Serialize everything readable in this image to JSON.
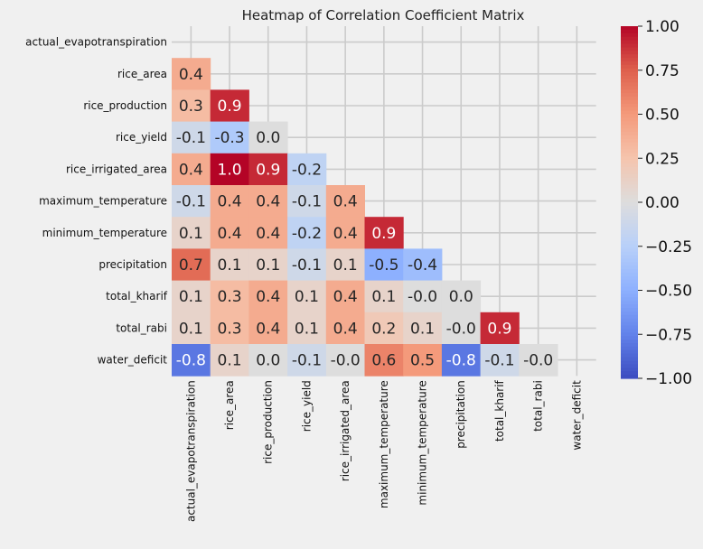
{
  "chart_data": {
    "type": "heatmap",
    "title": "Heatmap of Correlation Coefficient Matrix",
    "rows": [
      "actual_evapotranspiration",
      "rice_area",
      "rice_production",
      "rice_yield",
      "rice_irrigated_area",
      "maximum_temperature",
      "minimum_temperature",
      "precipitation",
      "total_kharif",
      "total_rabi",
      "water_deficit"
    ],
    "columns": [
      "actual_evapotranspiration",
      "rice_area",
      "rice_production",
      "rice_yield",
      "rice_irrigated_area",
      "maximum_temperature",
      "minimum_temperature",
      "precipitation",
      "total_kharif",
      "total_rabi",
      "water_deficit"
    ],
    "mask": "upper triangle including diagonal",
    "values": [
      [
        null,
        null,
        null,
        null,
        null,
        null,
        null,
        null,
        null,
        null,
        null
      ],
      [
        0.4,
        null,
        null,
        null,
        null,
        null,
        null,
        null,
        null,
        null,
        null
      ],
      [
        0.3,
        0.9,
        null,
        null,
        null,
        null,
        null,
        null,
        null,
        null,
        null
      ],
      [
        -0.1,
        -0.3,
        0.0,
        null,
        null,
        null,
        null,
        null,
        null,
        null,
        null
      ],
      [
        0.4,
        1.0,
        0.9,
        -0.2,
        null,
        null,
        null,
        null,
        null,
        null,
        null
      ],
      [
        -0.1,
        0.4,
        0.4,
        -0.1,
        0.4,
        null,
        null,
        null,
        null,
        null,
        null
      ],
      [
        0.1,
        0.4,
        0.4,
        -0.2,
        0.4,
        0.9,
        null,
        null,
        null,
        null,
        null
      ],
      [
        0.7,
        0.1,
        0.1,
        -0.1,
        0.1,
        -0.5,
        -0.4,
        null,
        null,
        null,
        null
      ],
      [
        0.1,
        0.3,
        0.4,
        0.1,
        0.4,
        0.1,
        -0.0,
        0.0,
        null,
        null,
        null
      ],
      [
        0.1,
        0.3,
        0.4,
        0.1,
        0.4,
        0.2,
        0.1,
        -0.0,
        0.9,
        null,
        null
      ],
      [
        -0.8,
        0.1,
        0.0,
        -0.1,
        -0.0,
        0.6,
        0.5,
        -0.8,
        -0.1,
        -0.0,
        null
      ]
    ],
    "colormap": "coolwarm",
    "vmin": -1.0,
    "vmax": 1.0,
    "colorbar_ticks": [
      "1.00",
      "0.75",
      "0.50",
      "0.25",
      "0.00",
      "−0.25",
      "−0.50",
      "−0.75",
      "−1.00"
    ],
    "grid": true
  }
}
